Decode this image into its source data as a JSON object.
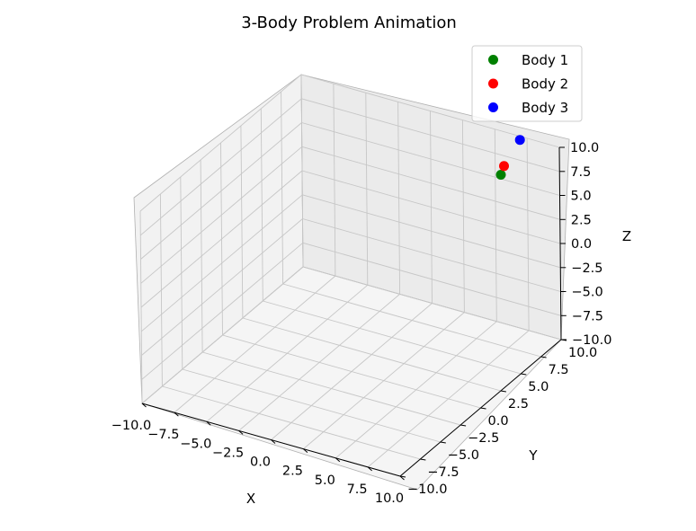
{
  "chart_data": {
    "type": "scatter3d",
    "title": "3-Body Problem Animation",
    "xlabel": "X",
    "ylabel": "Y",
    "zlabel": "Z",
    "xlim": [
      -10,
      10
    ],
    "ylim": [
      -10,
      10
    ],
    "zlim": [
      -10,
      10
    ],
    "ticks": [
      -10,
      -7.5,
      -5,
      -2.5,
      0,
      2.5,
      5,
      7.5,
      10
    ],
    "tick_labels": [
      "−10.0",
      "−7.5",
      "−5.0",
      "−2.5",
      "0.0",
      "2.5",
      "5.0",
      "7.5",
      "10.0"
    ],
    "grid": true,
    "legend_position": "top-right",
    "series": [
      {
        "name": "Body 1",
        "color": "#008000",
        "x": 6.95,
        "y": 7.6,
        "z": 7.7
      },
      {
        "name": "Body 2",
        "color": "#ff0000",
        "x": 7.2,
        "y": 7.6,
        "z": 8.7
      },
      {
        "name": "Body 3",
        "color": "#0000ff",
        "x": 7.2,
        "y": 9.6,
        "z": 10.0
      }
    ]
  }
}
